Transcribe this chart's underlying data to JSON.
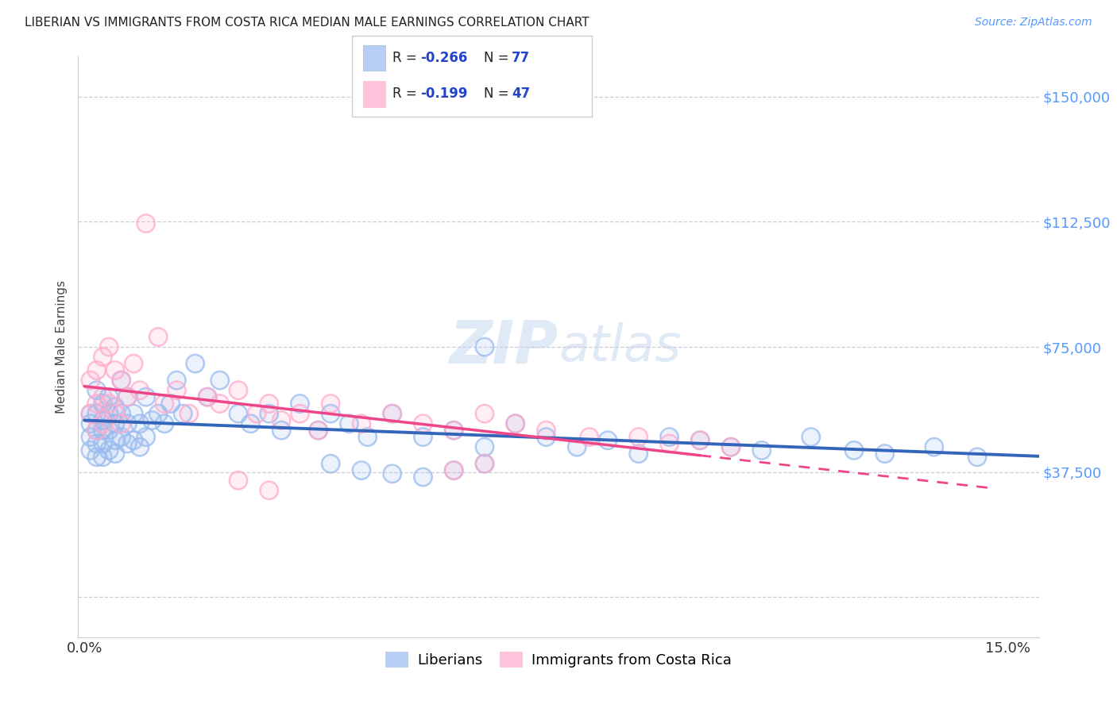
{
  "title": "LIBERIAN VS IMMIGRANTS FROM COSTA RICA MEDIAN MALE EARNINGS CORRELATION CHART",
  "source": "Source: ZipAtlas.com",
  "ylabel": "Median Male Earnings",
  "xlim_min": -0.001,
  "xlim_max": 0.155,
  "ylim_min": -12000,
  "ylim_max": 162000,
  "yticks": [
    0,
    37500,
    75000,
    112500,
    150000
  ],
  "ytick_labels": [
    "",
    "$37,500",
    "$75,000",
    "$112,500",
    "$150,000"
  ],
  "xtick_labels": [
    "0.0%",
    "15.0%"
  ],
  "grid_color": "#ccccdd",
  "bg_color": "#ffffff",
  "blue_scatter_color": "#99bbee",
  "pink_scatter_color": "#ffaacc",
  "blue_line_color": "#3366bb",
  "pink_line_color": "#ee4488",
  "right_axis_color": "#5599ff",
  "label_blue": "Liberians",
  "label_pink": "Immigrants from Costa Rica",
  "watermark_text": "ZIPatlas",
  "legend_R_blue": "-0.266",
  "legend_N_blue": "77",
  "legend_R_pink": "-0.199",
  "legend_N_pink": "47",
  "R_blue": -0.266,
  "N_blue": 77,
  "R_pink": -0.199,
  "N_pink": 47,
  "blue_x": [
    0.001,
    0.001,
    0.001,
    0.001,
    0.002,
    0.002,
    0.002,
    0.002,
    0.002,
    0.003,
    0.003,
    0.003,
    0.003,
    0.003,
    0.004,
    0.004,
    0.004,
    0.004,
    0.005,
    0.005,
    0.005,
    0.005,
    0.006,
    0.006,
    0.006,
    0.007,
    0.007,
    0.007,
    0.008,
    0.008,
    0.009,
    0.009,
    0.01,
    0.01,
    0.011,
    0.012,
    0.013,
    0.014,
    0.015,
    0.016,
    0.018,
    0.02,
    0.022,
    0.025,
    0.027,
    0.03,
    0.032,
    0.035,
    0.038,
    0.04,
    0.043,
    0.046,
    0.05,
    0.055,
    0.06,
    0.065,
    0.07,
    0.075,
    0.08,
    0.085,
    0.09,
    0.095,
    0.1,
    0.105,
    0.11,
    0.118,
    0.125,
    0.13,
    0.138,
    0.145,
    0.06,
    0.065,
    0.04,
    0.045,
    0.05,
    0.055,
    0.065
  ],
  "blue_y": [
    55000,
    52000,
    48000,
    44000,
    62000,
    55000,
    50000,
    46000,
    42000,
    58000,
    53000,
    50000,
    46000,
    42000,
    60000,
    55000,
    50000,
    44000,
    57000,
    52000,
    47000,
    43000,
    65000,
    55000,
    48000,
    60000,
    52000,
    46000,
    55000,
    47000,
    52000,
    45000,
    60000,
    48000,
    53000,
    55000,
    52000,
    58000,
    65000,
    55000,
    70000,
    60000,
    65000,
    55000,
    52000,
    55000,
    50000,
    58000,
    50000,
    55000,
    52000,
    48000,
    55000,
    48000,
    50000,
    45000,
    52000,
    48000,
    45000,
    47000,
    43000,
    48000,
    47000,
    45000,
    44000,
    48000,
    44000,
    43000,
    45000,
    42000,
    38000,
    40000,
    40000,
    38000,
    37000,
    36000,
    75000
  ],
  "pink_x": [
    0.001,
    0.001,
    0.002,
    0.002,
    0.002,
    0.003,
    0.003,
    0.003,
    0.004,
    0.004,
    0.005,
    0.005,
    0.006,
    0.006,
    0.007,
    0.008,
    0.009,
    0.01,
    0.012,
    0.013,
    0.015,
    0.017,
    0.02,
    0.022,
    0.025,
    0.028,
    0.03,
    0.032,
    0.035,
    0.038,
    0.04,
    0.045,
    0.05,
    0.055,
    0.06,
    0.065,
    0.07,
    0.075,
    0.082,
    0.09,
    0.095,
    0.1,
    0.105,
    0.06,
    0.025,
    0.03,
    0.065
  ],
  "pink_y": [
    65000,
    55000,
    68000,
    58000,
    50000,
    72000,
    60000,
    52000,
    75000,
    58000,
    68000,
    55000,
    65000,
    52000,
    60000,
    70000,
    62000,
    112000,
    78000,
    58000,
    62000,
    55000,
    60000,
    58000,
    62000,
    55000,
    58000,
    53000,
    55000,
    50000,
    58000,
    52000,
    55000,
    52000,
    50000,
    55000,
    52000,
    50000,
    48000,
    48000,
    46000,
    47000,
    45000,
    38000,
    35000,
    32000,
    40000
  ]
}
